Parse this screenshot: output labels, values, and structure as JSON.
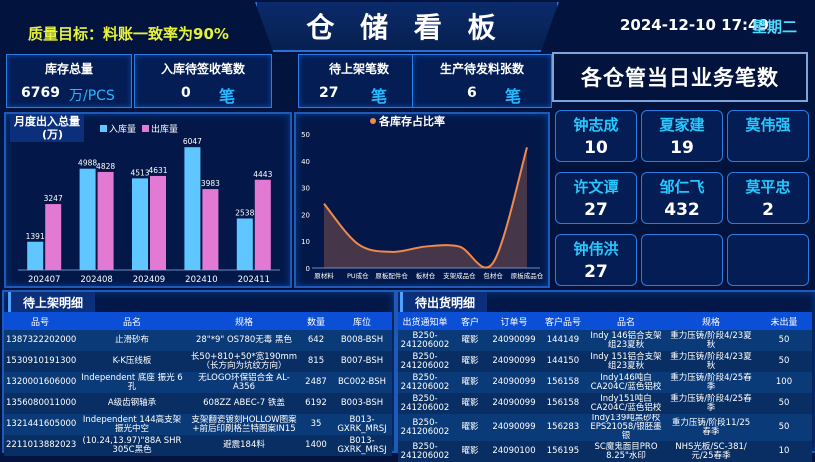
{
  "header": {
    "title": "仓 储 看 板",
    "quality_target": "质量目标：料账一致率为90%",
    "datetime": "2024-12-10 17:49",
    "weekday": "星期二"
  },
  "stats": [
    {
      "title": "库存总量",
      "value": "6769",
      "unit": "万/PCS"
    },
    {
      "title": "入库待签收笔数",
      "value": "0",
      "unit": "笔"
    },
    {
      "title": "待上架笔数",
      "value": "27",
      "unit": "笔"
    },
    {
      "title": "生产待发料张数",
      "value": "6",
      "unit": "笔"
    }
  ],
  "monthly_panel": {
    "title_line1": "月度出入总量",
    "title_line2": "(万)"
  },
  "chart_data": [
    {
      "type": "bar",
      "title": "月度出入总量 (万)",
      "categories": [
        "202407",
        "202408",
        "202409",
        "202410",
        "202411"
      ],
      "series": [
        {
          "name": "入库量",
          "color": "#5fc6ff",
          "values": [
            1391,
            4988,
            4513,
            6047,
            2538
          ]
        },
        {
          "name": "出库量",
          "color": "#e27ad3",
          "values": [
            3247,
            4828,
            4631,
            3983,
            4443
          ]
        }
      ],
      "ylim": [
        0,
        6500
      ],
      "legend": "top"
    },
    {
      "type": "line",
      "title": "各库存占比率",
      "categories": [
        "原材料",
        "PU成仓",
        "原板配件仓",
        "板材仓",
        "支架成品仓",
        "包材仓",
        "原板成品仓"
      ],
      "series": [
        {
          "name": "各库存占比率",
          "color": "#f08a4b",
          "values": [
            24,
            9,
            6,
            8,
            8,
            2,
            45
          ]
        }
      ],
      "ylim": [
        0,
        50
      ],
      "yticks": [
        0,
        10,
        20,
        30,
        40,
        50
      ],
      "legend": "top"
    }
  ],
  "business": {
    "title": "各仓管当日业务笔数",
    "people": [
      {
        "name": "钟志成",
        "count": "10"
      },
      {
        "name": "夏家建",
        "count": "19"
      },
      {
        "name": "莫伟强",
        "count": ""
      },
      {
        "name": "许文谭",
        "count": "27"
      },
      {
        "name": "邹仁飞",
        "count": "432"
      },
      {
        "name": "莫平忠",
        "count": "2"
      },
      {
        "name": "钟伟洪",
        "count": "27"
      },
      {
        "name": "",
        "count": ""
      },
      {
        "name": "",
        "count": ""
      }
    ]
  },
  "putaway": {
    "title": "待上架明细",
    "columns": [
      "品号",
      "品名",
      "规格",
      "数量",
      "库位"
    ],
    "rows": [
      [
        "1387322202000010",
        "止滑砂布",
        "28\"*9\" OS780无毒 黑色",
        "642",
        "B008-BSH"
      ],
      [
        "153091019130010",
        "K-K压线板",
        "长50+810+50*宽190mm（长方向为坑纹方向）",
        "815",
        "B007-BSH"
      ],
      [
        "1320001606000042",
        "Independent 底座 振光 6孔",
        "无LOGO环保铝合金 AL-A356",
        "2487",
        "BC002-BSH"
      ],
      [
        "1356080011000010",
        "A级齿钢轴承",
        "608ZZ ABEC-7 铁盖",
        "6192",
        "B003-BSH"
      ],
      [
        "1321441605000710",
        "Independent 144高支架 振光中空",
        "支架翻瓷镀刻HOLLOW图案+前后印刷格兰特图案IN15",
        "35",
        "B013-GXRK_MRSJ"
      ],
      [
        "22110138820230",
        "(10.24,13.97)\"88A SHR 305C黑色",
        "避震184料",
        "1400",
        "B013-GXRK_MRSJ"
      ]
    ]
  },
  "shipping": {
    "title": "待出货明细",
    "columns": [
      "出货通知单",
      "客户",
      "订单号",
      "客户品号",
      "品名",
      "规格",
      "未出量"
    ],
    "rows": [
      [
        "B250-241206002",
        "曜影",
        "24090099",
        "144149",
        "Indy 146铝合支架组23夏秋",
        "重力压铸/阶段4/23夏秋",
        "50"
      ],
      [
        "B250-241206002",
        "曜影",
        "24090099",
        "144150",
        "Indy 151铝合支架组23夏秋",
        "重力压铸/阶段4/23夏秋",
        "50"
      ],
      [
        "B250-241206002",
        "曜影",
        "24090099",
        "156158",
        "Indy146吨白CA204C/蓝色铝校",
        "重力压铸/阶段4/25春季",
        "100"
      ],
      [
        "B250-241206002",
        "曜影",
        "24090099",
        "156158",
        "Indy151吨白CA204C/蓝色铝校",
        "重力压铸/阶段4/25春季",
        "50"
      ],
      [
        "B250-241206002",
        "曜影",
        "24090099",
        "156283",
        "Indy139吨黑砂校EPS21058/银胚墨银",
        "重力压铸/阶段11/25春季",
        "50"
      ],
      [
        "B250-241206002",
        "曜影",
        "24090100",
        "156195",
        "SC魔鬼面目PRO 8.25\"水印",
        "NHS光板/SC-381/元/25春季",
        "10"
      ]
    ]
  }
}
